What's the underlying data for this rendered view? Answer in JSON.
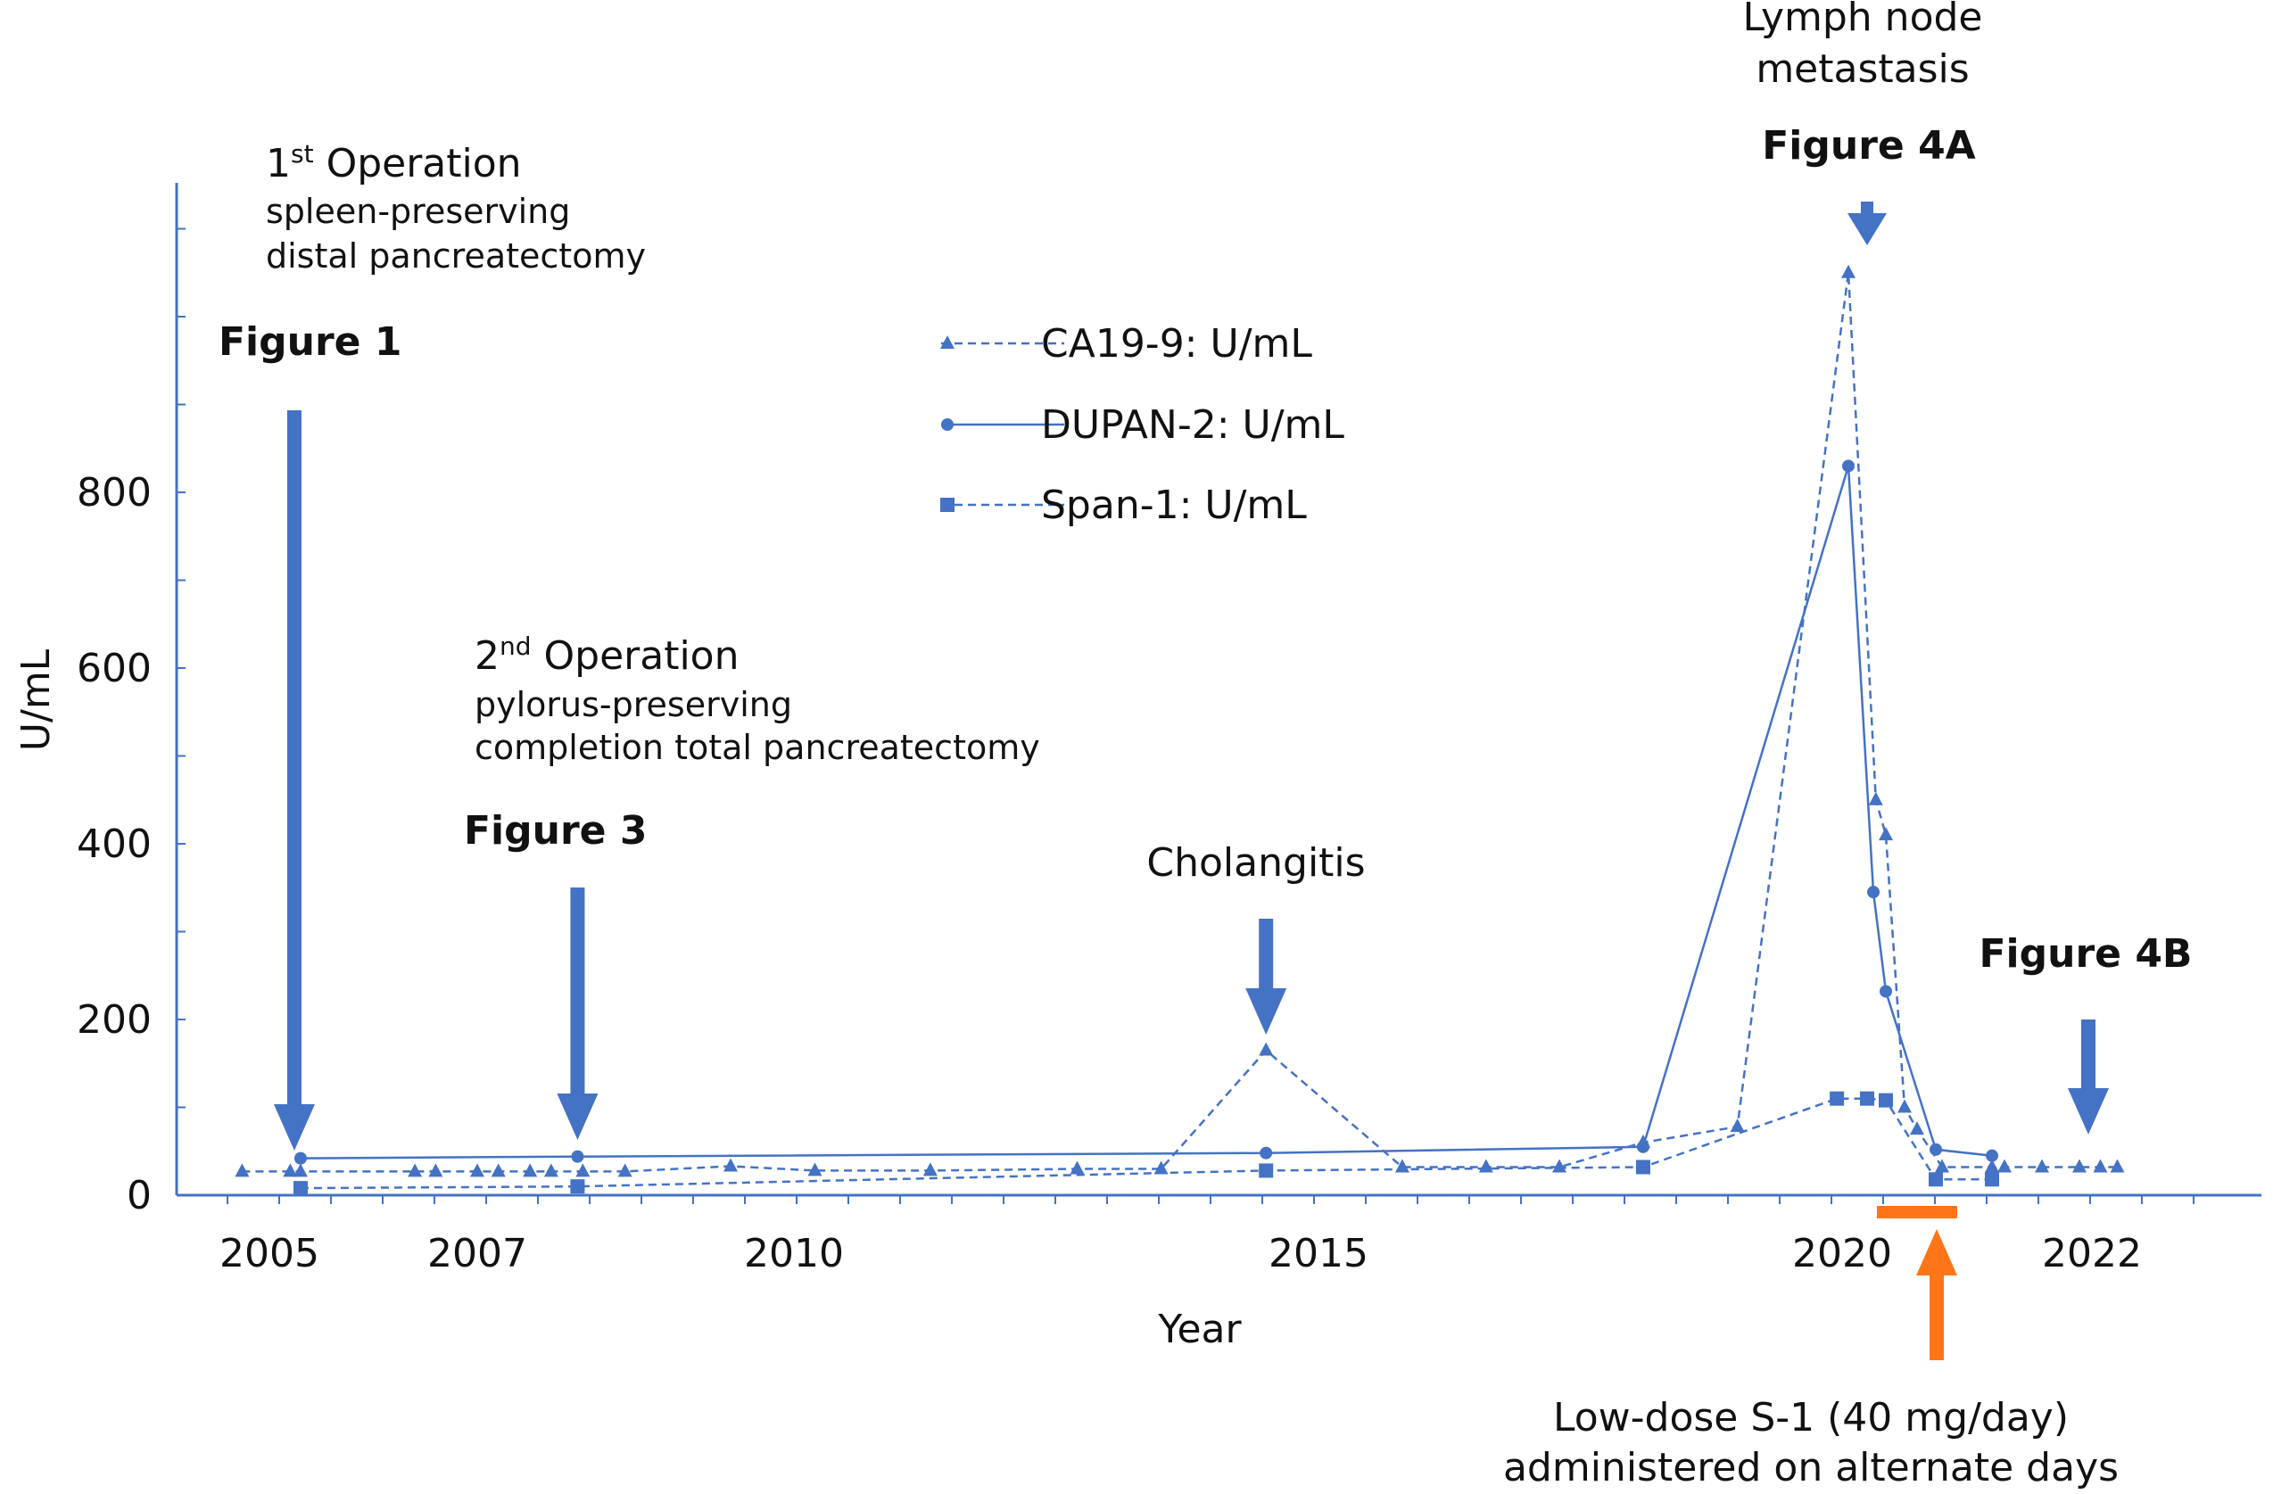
{
  "chart_data": {
    "type": "line",
    "xlabel": "Year",
    "ylabel": "U/mL",
    "x_ticks": [
      "2005",
      "2007",
      "2010",
      "2015",
      "2020",
      "2022"
    ],
    "y_ticks": [
      "0",
      "200",
      "400",
      "600",
      "800"
    ],
    "xlim": [
      2004,
      2024
    ],
    "ylim": [
      0,
      1150
    ],
    "grid": false,
    "legend_position": "top-center",
    "series": [
      {
        "name": "CA19-9: U/mL",
        "line_style": "dashed",
        "marker": "triangle",
        "color": "#4472C4",
        "points": [
          [
            2004.7,
            27
          ],
          [
            2005.2,
            27
          ],
          [
            2005.3,
            27
          ],
          [
            2006.4,
            27
          ],
          [
            2006.6,
            27
          ],
          [
            2007.0,
            27
          ],
          [
            2007.2,
            27
          ],
          [
            2007.5,
            27
          ],
          [
            2007.7,
            27
          ],
          [
            2008.0,
            27
          ],
          [
            2008.4,
            27
          ],
          [
            2009.4,
            33
          ],
          [
            2010.2,
            28
          ],
          [
            2011.3,
            28
          ],
          [
            2012.7,
            30
          ],
          [
            2013.5,
            30
          ],
          [
            2014.5,
            165
          ],
          [
            2015.8,
            32
          ],
          [
            2016.6,
            32
          ],
          [
            2017.3,
            32
          ],
          [
            2018.1,
            60
          ],
          [
            2019.0,
            78
          ],
          [
            2020.05,
            1050
          ],
          [
            2020.27,
            450
          ],
          [
            2020.35,
            410
          ],
          [
            2020.5,
            100
          ],
          [
            2020.6,
            75
          ],
          [
            2020.8,
            32
          ],
          [
            2021.2,
            32
          ],
          [
            2021.3,
            32
          ],
          [
            2021.6,
            32
          ],
          [
            2021.9,
            32
          ],
          [
            2022.1,
            32
          ],
          [
            2022.3,
            32
          ]
        ]
      },
      {
        "name": "DUPAN-2: U/mL",
        "line_style": "solid",
        "marker": "circle",
        "color": "#4472C4",
        "points": [
          [
            2005.3,
            42
          ],
          [
            2007.95,
            44
          ],
          [
            2014.5,
            48
          ],
          [
            2018.1,
            55
          ],
          [
            2020.05,
            830
          ],
          [
            2020.25,
            345
          ],
          [
            2020.35,
            232
          ],
          [
            2020.75,
            52
          ],
          [
            2021.2,
            45
          ]
        ]
      },
      {
        "name": "Span-1: U/mL",
        "line_style": "dashed",
        "marker": "square",
        "color": "#4472C4",
        "points": [
          [
            2005.3,
            8
          ],
          [
            2007.95,
            10
          ],
          [
            2014.5,
            28
          ],
          [
            2018.1,
            32
          ],
          [
            2019.95,
            110
          ],
          [
            2020.2,
            110
          ],
          [
            2020.35,
            108
          ],
          [
            2020.75,
            18
          ],
          [
            2021.2,
            18
          ]
        ]
      }
    ],
    "annotations": {
      "op1": {
        "title": "1",
        "sup": "st",
        "title_rest": " Operation",
        "line1": "spleen-preserving",
        "line2": "distal pancreatectomy"
      },
      "op2": {
        "title": "2",
        "sup": "nd",
        "title_rest": " Operation",
        "line1": "pylorus-preserving",
        "line2": "completion total pancreatectomy"
      },
      "fig1": {
        "label": "Figure 1",
        "x": 2005.3
      },
      "fig3": {
        "label": "Figure 3",
        "x": 2007.95
      },
      "cholangitis": {
        "label": "Cholangitis",
        "x": 2014.5
      },
      "fig4a": {
        "label": "Figure 4A",
        "x": 2020.05,
        "event_line1": "Lymph node",
        "event_line2": "metastasis"
      },
      "fig4b": {
        "label": "Figure 4B",
        "x": 2022.0
      },
      "s1": {
        "line1": "Low-dose S-1 (40 mg/day)",
        "line2": "administered on alternate days",
        "start": 2020.15,
        "end": 2020.9,
        "arrow_x": 2020.6,
        "color": "#FF7518"
      }
    }
  },
  "colors": {
    "series": "#4472C4",
    "arrow": "#4472C4",
    "s1": "#FF7518"
  }
}
